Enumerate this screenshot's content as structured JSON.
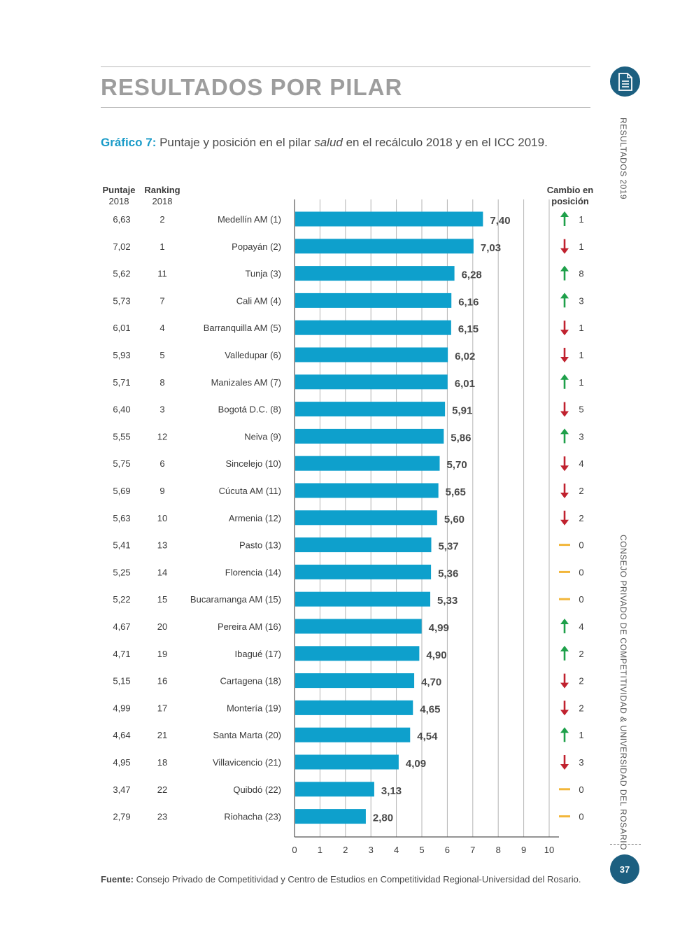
{
  "section_title": "RESULTADOS POR PILAR",
  "caption": {
    "label": "Gráfico 7:",
    "text_before": " Puntaje y posición en el pilar ",
    "text_italic": "salud",
    "text_after": " en el recálculo 2018 y en el ICC 2019."
  },
  "headers": {
    "score_2018": [
      "Puntaje",
      "2018"
    ],
    "rank_2018": [
      "Ranking",
      "2018"
    ],
    "change": [
      "Cambio en",
      "posición"
    ]
  },
  "source": {
    "label": "Fuente:",
    "text": " Consejo Privado de Competitividad y Centro de Estudios en Competitividad Regional-Universidad del Rosario."
  },
  "side": {
    "results": "RESULTADOS  2019",
    "council": "CONSEJO PRIVADO DE COMPETITIVIDAD & UNIVERSIDAD DEL ROSARIO"
  },
  "page_number": "37",
  "icons": {
    "document": "document-icon",
    "up": "arrow-up-icon",
    "down": "arrow-down-icon",
    "same": "dash-icon"
  },
  "colors": {
    "bar": "#0ea0cc",
    "up": "#1ea04a",
    "down": "#c0212e",
    "same": "#f2b63a",
    "accent": "#1a9bc8",
    "badge": "#1c5f80"
  },
  "chart_data": {
    "type": "bar",
    "orientation": "horizontal",
    "xlim": [
      0,
      10
    ],
    "xticks": [
      "0",
      "1",
      "2",
      "3",
      "4",
      "5",
      "6",
      "7",
      "8",
      "9",
      "10"
    ],
    "rows": [
      {
        "city": "Medellín AM (1)",
        "score_2019": 7.4,
        "label": "7,40",
        "score_2018": "6,63",
        "rank_2018": "2",
        "direction": "up",
        "change": "1"
      },
      {
        "city": "Popayán (2)",
        "score_2019": 7.03,
        "label": "7,03",
        "score_2018": "7,02",
        "rank_2018": "1",
        "direction": "down",
        "change": "1"
      },
      {
        "city": "Tunja (3)",
        "score_2019": 6.28,
        "label": "6,28",
        "score_2018": "5,62",
        "rank_2018": "11",
        "direction": "up",
        "change": "8"
      },
      {
        "city": "Cali AM (4)",
        "score_2019": 6.16,
        "label": "6,16",
        "score_2018": "5,73",
        "rank_2018": "7",
        "direction": "up",
        "change": "3"
      },
      {
        "city": "Barranquilla AM (5)",
        "score_2019": 6.15,
        "label": "6,15",
        "score_2018": "6,01",
        "rank_2018": "4",
        "direction": "down",
        "change": "1"
      },
      {
        "city": "Valledupar (6)",
        "score_2019": 6.02,
        "label": "6,02",
        "score_2018": "5,93",
        "rank_2018": "5",
        "direction": "down",
        "change": "1"
      },
      {
        "city": "Manizales AM (7)",
        "score_2019": 6.01,
        "label": "6,01",
        "score_2018": "5,71",
        "rank_2018": "8",
        "direction": "up",
        "change": "1"
      },
      {
        "city": "Bogotá D.C. (8)",
        "score_2019": 5.91,
        "label": "5,91",
        "score_2018": "6,40",
        "rank_2018": "3",
        "direction": "down",
        "change": "5"
      },
      {
        "city": "Neiva (9)",
        "score_2019": 5.86,
        "label": "5,86",
        "score_2018": "5,55",
        "rank_2018": "12",
        "direction": "up",
        "change": "3"
      },
      {
        "city": "Sincelejo (10)",
        "score_2019": 5.7,
        "label": "5,70",
        "score_2018": "5,75",
        "rank_2018": "6",
        "direction": "down",
        "change": "4"
      },
      {
        "city": "Cúcuta AM (11)",
        "score_2019": 5.65,
        "label": "5,65",
        "score_2018": "5,69",
        "rank_2018": "9",
        "direction": "down",
        "change": "2"
      },
      {
        "city": "Armenia (12)",
        "score_2019": 5.6,
        "label": "5,60",
        "score_2018": "5,63",
        "rank_2018": "10",
        "direction": "down",
        "change": "2"
      },
      {
        "city": "Pasto (13)",
        "score_2019": 5.37,
        "label": "5,37",
        "score_2018": "5,41",
        "rank_2018": "13",
        "direction": "same",
        "change": "0"
      },
      {
        "city": "Florencia (14)",
        "score_2019": 5.36,
        "label": "5,36",
        "score_2018": "5,25",
        "rank_2018": "14",
        "direction": "same",
        "change": "0"
      },
      {
        "city": "Bucaramanga AM (15)",
        "score_2019": 5.33,
        "label": "5,33",
        "score_2018": "5,22",
        "rank_2018": "15",
        "direction": "same",
        "change": "0"
      },
      {
        "city": "Pereira AM (16)",
        "score_2019": 4.99,
        "label": "4,99",
        "score_2018": "4,67",
        "rank_2018": "20",
        "direction": "up",
        "change": "4"
      },
      {
        "city": "Ibagué (17)",
        "score_2019": 4.9,
        "label": "4,90",
        "score_2018": "4,71",
        "rank_2018": "19",
        "direction": "up",
        "change": "2"
      },
      {
        "city": "Cartagena (18)",
        "score_2019": 4.7,
        "label": "4,70",
        "score_2018": "5,15",
        "rank_2018": "16",
        "direction": "down",
        "change": "2"
      },
      {
        "city": "Montería (19)",
        "score_2019": 4.65,
        "label": "4,65",
        "score_2018": "4,99",
        "rank_2018": "17",
        "direction": "down",
        "change": "2"
      },
      {
        "city": "Santa Marta (20)",
        "score_2019": 4.54,
        "label": "4,54",
        "score_2018": "4,64",
        "rank_2018": "21",
        "direction": "up",
        "change": "1"
      },
      {
        "city": "Villavicencio (21)",
        "score_2019": 4.09,
        "label": "4,09",
        "score_2018": "4,95",
        "rank_2018": "18",
        "direction": "down",
        "change": "3"
      },
      {
        "city": "Quibdó (22)",
        "score_2019": 3.13,
        "label": "3,13",
        "score_2018": "3,47",
        "rank_2018": "22",
        "direction": "same",
        "change": "0"
      },
      {
        "city": "Riohacha (23)",
        "score_2019": 2.8,
        "label": "2,80",
        "score_2018": "2,79",
        "rank_2018": "23",
        "direction": "same",
        "change": "0"
      }
    ]
  }
}
